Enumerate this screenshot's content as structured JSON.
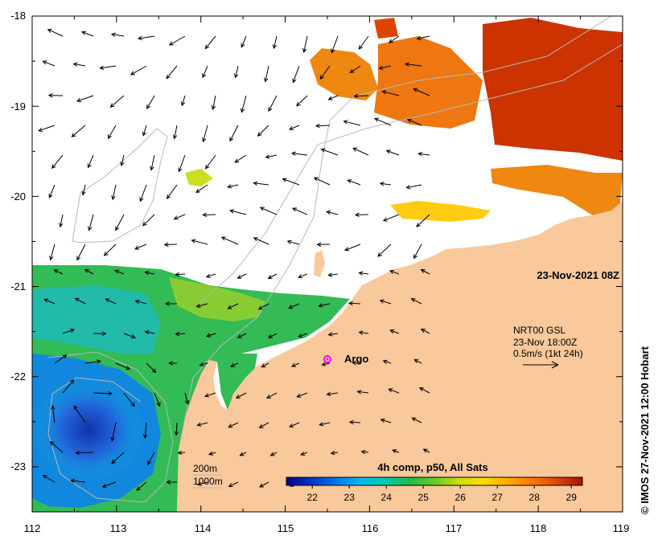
{
  "map": {
    "date_label": "23-Nov-2021 08Z",
    "credit": "© IMOS 27-Nov-2021 12:00 Hobart",
    "current_info": {
      "source": "NRT00 GSL",
      "time": "23-Nov 18:00Z",
      "scale": "0.5m/s (1kt 24h)"
    },
    "float_marker": {
      "label": "Argo",
      "lon": 115.5,
      "lat": -21.8,
      "color": "#ff00ff"
    },
    "isobaths": [
      {
        "label": "200m"
      },
      {
        "label": "1000m"
      }
    ],
    "land_color": "#f9c89b",
    "x_ticks": [
      "112",
      "113",
      "114",
      "115",
      "116",
      "117",
      "118",
      "119"
    ],
    "y_ticks": [
      "-18",
      "-19",
      "-20",
      "-21",
      "-22",
      "-23"
    ],
    "extent": {
      "lon": [
        112,
        119
      ],
      "lat": [
        -23.5,
        -18
      ]
    }
  },
  "colorbar": {
    "title": "4h comp, p50, All Sats",
    "ticks": [
      "22",
      "23",
      "24",
      "25",
      "26",
      "27",
      "28",
      "29"
    ],
    "range": [
      21.3,
      29.3
    ],
    "colors": [
      "#00008b",
      "#0033cc",
      "#0077ee",
      "#00bbee",
      "#00ccaa",
      "#22bb44",
      "#66cc22",
      "#ccdd11",
      "#ffdd00",
      "#ffaa00",
      "#ff7700",
      "#dd4400",
      "#aa1100"
    ]
  }
}
